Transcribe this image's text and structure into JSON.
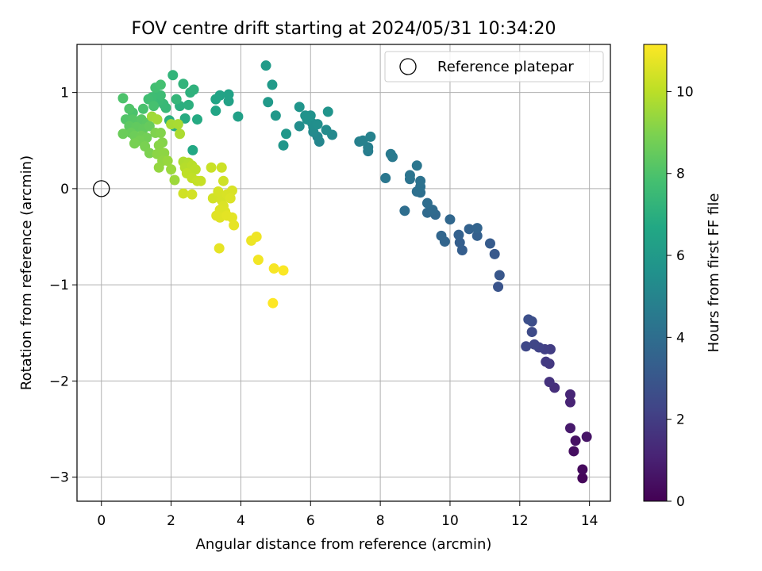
{
  "chart_data": {
    "type": "scatter",
    "title": "FOV centre drift starting at 2024/05/31 10:34:20",
    "xlabel": "Angular distance from reference (arcmin)",
    "ylabel": "Rotation from reference (arcmin)",
    "xlim": [
      -0.7,
      14.6
    ],
    "ylim": [
      -3.25,
      1.5
    ],
    "xticks": [
      0,
      2,
      4,
      6,
      8,
      10,
      12,
      14
    ],
    "xtick_labels": [
      "0",
      "2",
      "4",
      "6",
      "8",
      "10",
      "12",
      "14"
    ],
    "yticks": [
      -3,
      -2,
      -1,
      0,
      1
    ],
    "ytick_labels": [
      "−3",
      "−2",
      "−1",
      "0",
      "1"
    ],
    "grid": true,
    "legend": {
      "placement": "top-right",
      "entries": [
        "Reference platepar"
      ]
    },
    "colorbar": {
      "label": "Hours from first FF file",
      "colormap": "viridis",
      "range": [
        0,
        11.15
      ],
      "ticks": [
        0,
        2,
        4,
        6,
        8,
        10
      ],
      "tick_labels": [
        "0",
        "2",
        "4",
        "6",
        "8",
        "10"
      ]
    },
    "reference_point": {
      "x": 0,
      "y": 0,
      "label": "Reference platepar"
    },
    "series": [
      {
        "name": "Hours from first FF file",
        "points": [
          {
            "x": 13.8,
            "y": -3.01,
            "c": 0.2
          },
          {
            "x": 13.8,
            "y": -2.92,
            "c": 0.3
          },
          {
            "x": 13.55,
            "y": -2.73,
            "c": 0.4
          },
          {
            "x": 13.6,
            "y": -2.62,
            "c": 0.5
          },
          {
            "x": 13.92,
            "y": -2.58,
            "c": 0.6
          },
          {
            "x": 13.45,
            "y": -2.49,
            "c": 0.8
          },
          {
            "x": 13.45,
            "y": -2.22,
            "c": 1.1
          },
          {
            "x": 13.45,
            "y": -2.14,
            "c": 1.2
          },
          {
            "x": 13.0,
            "y": -2.07,
            "c": 1.5
          },
          {
            "x": 12.85,
            "y": -2.01,
            "c": 1.6
          },
          {
            "x": 12.85,
            "y": -1.82,
            "c": 1.8
          },
          {
            "x": 12.75,
            "y": -1.8,
            "c": 1.9
          },
          {
            "x": 12.88,
            "y": -1.67,
            "c": 2.0
          },
          {
            "x": 12.72,
            "y": -1.67,
            "c": 2.1
          },
          {
            "x": 12.55,
            "y": -1.65,
            "c": 2.2
          },
          {
            "x": 12.42,
            "y": -1.62,
            "c": 2.3
          },
          {
            "x": 12.18,
            "y": -1.64,
            "c": 2.4
          },
          {
            "x": 12.35,
            "y": -1.49,
            "c": 2.5
          },
          {
            "x": 12.35,
            "y": -1.38,
            "c": 2.6
          },
          {
            "x": 12.25,
            "y": -1.36,
            "c": 2.7
          },
          {
            "x": 11.38,
            "y": -1.02,
            "c": 2.9
          },
          {
            "x": 11.42,
            "y": -0.9,
            "c": 3.0
          },
          {
            "x": 11.28,
            "y": -0.68,
            "c": 3.1
          },
          {
            "x": 11.15,
            "y": -0.57,
            "c": 3.2
          },
          {
            "x": 10.35,
            "y": -0.64,
            "c": 3.3
          },
          {
            "x": 10.28,
            "y": -0.56,
            "c": 3.35
          },
          {
            "x": 10.78,
            "y": -0.49,
            "c": 3.4
          },
          {
            "x": 10.25,
            "y": -0.48,
            "c": 3.45
          },
          {
            "x": 10.55,
            "y": -0.42,
            "c": 3.5
          },
          {
            "x": 10.78,
            "y": -0.41,
            "c": 3.55
          },
          {
            "x": 9.85,
            "y": -0.55,
            "c": 3.6
          },
          {
            "x": 9.75,
            "y": -0.49,
            "c": 3.65
          },
          {
            "x": 10.0,
            "y": -0.32,
            "c": 3.7
          },
          {
            "x": 9.58,
            "y": -0.27,
            "c": 3.8
          },
          {
            "x": 9.35,
            "y": -0.25,
            "c": 3.85
          },
          {
            "x": 9.5,
            "y": -0.22,
            "c": 3.9
          },
          {
            "x": 9.35,
            "y": -0.15,
            "c": 3.95
          },
          {
            "x": 8.7,
            "y": -0.23,
            "c": 4.0
          },
          {
            "x": 9.15,
            "y": -0.04,
            "c": 4.05
          },
          {
            "x": 9.05,
            "y": -0.03,
            "c": 4.1
          },
          {
            "x": 9.15,
            "y": 0.02,
            "c": 4.15
          },
          {
            "x": 9.15,
            "y": 0.08,
            "c": 4.2
          },
          {
            "x": 8.85,
            "y": 0.1,
            "c": 4.25
          },
          {
            "x": 8.85,
            "y": 0.14,
            "c": 4.3
          },
          {
            "x": 9.05,
            "y": 0.24,
            "c": 4.35
          },
          {
            "x": 8.15,
            "y": 0.11,
            "c": 4.4
          },
          {
            "x": 8.35,
            "y": 0.33,
            "c": 4.5
          },
          {
            "x": 8.3,
            "y": 0.36,
            "c": 4.55
          },
          {
            "x": 7.65,
            "y": 0.39,
            "c": 4.7
          },
          {
            "x": 7.65,
            "y": 0.43,
            "c": 4.75
          },
          {
            "x": 7.4,
            "y": 0.49,
            "c": 4.8
          },
          {
            "x": 7.5,
            "y": 0.5,
            "c": 4.85
          },
          {
            "x": 7.72,
            "y": 0.54,
            "c": 4.9
          },
          {
            "x": 6.25,
            "y": 0.49,
            "c": 5.1
          },
          {
            "x": 6.2,
            "y": 0.54,
            "c": 5.15
          },
          {
            "x": 6.62,
            "y": 0.56,
            "c": 5.2
          },
          {
            "x": 6.08,
            "y": 0.59,
            "c": 5.25
          },
          {
            "x": 6.45,
            "y": 0.61,
            "c": 5.3
          },
          {
            "x": 6.08,
            "y": 0.64,
            "c": 5.35
          },
          {
            "x": 5.68,
            "y": 0.65,
            "c": 5.4
          },
          {
            "x": 6.05,
            "y": 0.68,
            "c": 5.45
          },
          {
            "x": 6.2,
            "y": 0.67,
            "c": 5.5
          },
          {
            "x": 5.9,
            "y": 0.72,
            "c": 5.55
          },
          {
            "x": 6.0,
            "y": 0.76,
            "c": 5.6
          },
          {
            "x": 5.85,
            "y": 0.76,
            "c": 5.65
          },
          {
            "x": 6.5,
            "y": 0.8,
            "c": 5.7
          },
          {
            "x": 5.68,
            "y": 0.85,
            "c": 5.75
          },
          {
            "x": 5.22,
            "y": 0.45,
            "c": 5.8
          },
          {
            "x": 5.3,
            "y": 0.57,
            "c": 5.85
          },
          {
            "x": 5.0,
            "y": 0.76,
            "c": 5.9
          },
          {
            "x": 4.78,
            "y": 0.9,
            "c": 5.95
          },
          {
            "x": 4.9,
            "y": 1.08,
            "c": 6.0
          },
          {
            "x": 4.72,
            "y": 1.28,
            "c": 6.05
          },
          {
            "x": 3.92,
            "y": 0.75,
            "c": 6.3
          },
          {
            "x": 3.65,
            "y": 0.91,
            "c": 6.35
          },
          {
            "x": 3.65,
            "y": 0.98,
            "c": 6.4
          },
          {
            "x": 3.4,
            "y": 0.97,
            "c": 6.45
          },
          {
            "x": 3.28,
            "y": 0.93,
            "c": 6.5
          },
          {
            "x": 3.28,
            "y": 0.81,
            "c": 6.55
          },
          {
            "x": 2.62,
            "y": 0.4,
            "c": 6.7
          },
          {
            "x": 2.75,
            "y": 0.72,
            "c": 6.8
          },
          {
            "x": 2.4,
            "y": 0.73,
            "c": 6.85
          },
          {
            "x": 2.1,
            "y": 0.65,
            "c": 6.9
          },
          {
            "x": 1.95,
            "y": 0.71,
            "c": 6.95
          },
          {
            "x": 2.25,
            "y": 0.86,
            "c": 7.0
          },
          {
            "x": 2.5,
            "y": 0.87,
            "c": 7.05
          },
          {
            "x": 2.55,
            "y": 1.0,
            "c": 7.1
          },
          {
            "x": 2.65,
            "y": 1.03,
            "c": 7.15
          },
          {
            "x": 2.35,
            "y": 1.09,
            "c": 7.2
          },
          {
            "x": 2.05,
            "y": 1.18,
            "c": 7.25
          },
          {
            "x": 2.15,
            "y": 0.93,
            "c": 7.3
          },
          {
            "x": 1.85,
            "y": 0.84,
            "c": 7.4
          },
          {
            "x": 1.78,
            "y": 0.88,
            "c": 7.45
          },
          {
            "x": 1.65,
            "y": 0.92,
            "c": 7.5
          },
          {
            "x": 1.55,
            "y": 0.96,
            "c": 7.55
          },
          {
            "x": 1.7,
            "y": 0.97,
            "c": 7.6
          },
          {
            "x": 1.45,
            "y": 0.95,
            "c": 7.65
          },
          {
            "x": 1.35,
            "y": 0.93,
            "c": 7.7
          },
          {
            "x": 1.55,
            "y": 1.05,
            "c": 7.75
          },
          {
            "x": 1.7,
            "y": 1.08,
            "c": 7.8
          },
          {
            "x": 1.5,
            "y": 0.86,
            "c": 7.85
          },
          {
            "x": 1.2,
            "y": 0.83,
            "c": 7.9
          },
          {
            "x": 0.9,
            "y": 0.79,
            "c": 7.95
          },
          {
            "x": 0.62,
            "y": 0.94,
            "c": 8.0
          },
          {
            "x": 0.8,
            "y": 0.83,
            "c": 8.05
          },
          {
            "x": 0.7,
            "y": 0.72,
            "c": 8.1
          },
          {
            "x": 0.9,
            "y": 0.72,
            "c": 8.15
          },
          {
            "x": 1.0,
            "y": 0.7,
            "c": 8.2
          },
          {
            "x": 1.15,
            "y": 0.72,
            "c": 8.25
          },
          {
            "x": 1.3,
            "y": 0.68,
            "c": 8.3
          },
          {
            "x": 0.8,
            "y": 0.65,
            "c": 8.35
          },
          {
            "x": 1.0,
            "y": 0.64,
            "c": 8.4
          },
          {
            "x": 1.2,
            "y": 0.62,
            "c": 8.45
          },
          {
            "x": 1.38,
            "y": 0.65,
            "c": 8.5
          },
          {
            "x": 0.85,
            "y": 0.58,
            "c": 8.55
          },
          {
            "x": 0.62,
            "y": 0.57,
            "c": 8.6
          },
          {
            "x": 0.95,
            "y": 0.55,
            "c": 8.65
          },
          {
            "x": 1.15,
            "y": 0.55,
            "c": 8.7
          },
          {
            "x": 1.3,
            "y": 0.53,
            "c": 8.75
          },
          {
            "x": 1.1,
            "y": 0.5,
            "c": 8.8
          },
          {
            "x": 0.95,
            "y": 0.47,
            "c": 8.85
          },
          {
            "x": 1.25,
            "y": 0.44,
            "c": 8.9
          },
          {
            "x": 1.38,
            "y": 0.37,
            "c": 8.95
          },
          {
            "x": 1.55,
            "y": 0.58,
            "c": 9.0
          },
          {
            "x": 1.7,
            "y": 0.58,
            "c": 9.05
          },
          {
            "x": 1.75,
            "y": 0.48,
            "c": 9.1
          },
          {
            "x": 1.65,
            "y": 0.45,
            "c": 9.15
          },
          {
            "x": 1.6,
            "y": 0.36,
            "c": 9.2
          },
          {
            "x": 1.8,
            "y": 0.37,
            "c": 9.25
          },
          {
            "x": 1.75,
            "y": 0.29,
            "c": 9.3
          },
          {
            "x": 1.65,
            "y": 0.22,
            "c": 9.35
          },
          {
            "x": 1.9,
            "y": 0.29,
            "c": 9.4
          },
          {
            "x": 2.0,
            "y": 0.2,
            "c": 9.45
          },
          {
            "x": 2.1,
            "y": 0.09,
            "c": 9.5
          },
          {
            "x": 1.45,
            "y": 0.75,
            "c": 9.55
          },
          {
            "x": 1.6,
            "y": 0.72,
            "c": 9.6
          },
          {
            "x": 2.0,
            "y": 0.67,
            "c": 9.65
          },
          {
            "x": 2.2,
            "y": 0.67,
            "c": 9.7
          },
          {
            "x": 2.25,
            "y": 0.57,
            "c": 9.75
          },
          {
            "x": 2.35,
            "y": 0.28,
            "c": 9.8
          },
          {
            "x": 2.5,
            "y": 0.27,
            "c": 9.85
          },
          {
            "x": 2.4,
            "y": 0.22,
            "c": 9.9
          },
          {
            "x": 2.6,
            "y": 0.24,
            "c": 9.95
          },
          {
            "x": 2.7,
            "y": 0.2,
            "c": 10.0
          },
          {
            "x": 2.45,
            "y": 0.16,
            "c": 10.05
          },
          {
            "x": 2.6,
            "y": 0.11,
            "c": 10.1
          },
          {
            "x": 2.75,
            "y": 0.08,
            "c": 10.15
          },
          {
            "x": 2.85,
            "y": 0.08,
            "c": 10.2
          },
          {
            "x": 3.15,
            "y": 0.22,
            "c": 10.25
          },
          {
            "x": 3.45,
            "y": 0.22,
            "c": 10.3
          },
          {
            "x": 3.5,
            "y": 0.08,
            "c": 10.35
          },
          {
            "x": 2.35,
            "y": -0.05,
            "c": 10.35
          },
          {
            "x": 2.6,
            "y": -0.06,
            "c": 10.4
          },
          {
            "x": 3.2,
            "y": -0.1,
            "c": 10.4
          },
          {
            "x": 3.45,
            "y": -0.12,
            "c": 10.45
          },
          {
            "x": 3.35,
            "y": -0.03,
            "c": 10.45
          },
          {
            "x": 3.6,
            "y": -0.06,
            "c": 10.5
          },
          {
            "x": 3.75,
            "y": -0.02,
            "c": 10.5
          },
          {
            "x": 3.7,
            "y": -0.1,
            "c": 10.55
          },
          {
            "x": 3.5,
            "y": -0.18,
            "c": 10.55
          },
          {
            "x": 3.4,
            "y": -0.22,
            "c": 10.6
          },
          {
            "x": 3.55,
            "y": -0.24,
            "c": 10.6
          },
          {
            "x": 3.3,
            "y": -0.28,
            "c": 10.65
          },
          {
            "x": 3.4,
            "y": -0.3,
            "c": 10.65
          },
          {
            "x": 3.6,
            "y": -0.28,
            "c": 10.7
          },
          {
            "x": 3.75,
            "y": -0.3,
            "c": 10.7
          },
          {
            "x": 3.8,
            "y": -0.38,
            "c": 10.75
          },
          {
            "x": 3.38,
            "y": -0.62,
            "c": 10.75
          },
          {
            "x": 4.3,
            "y": -0.54,
            "c": 10.85
          },
          {
            "x": 4.45,
            "y": -0.5,
            "c": 10.9
          },
          {
            "x": 4.5,
            "y": -0.74,
            "c": 10.95
          },
          {
            "x": 4.95,
            "y": -0.83,
            "c": 11.05
          },
          {
            "x": 5.22,
            "y": -0.85,
            "c": 11.1
          },
          {
            "x": 4.92,
            "y": -1.19,
            "c": 11.15
          }
        ]
      }
    ]
  }
}
